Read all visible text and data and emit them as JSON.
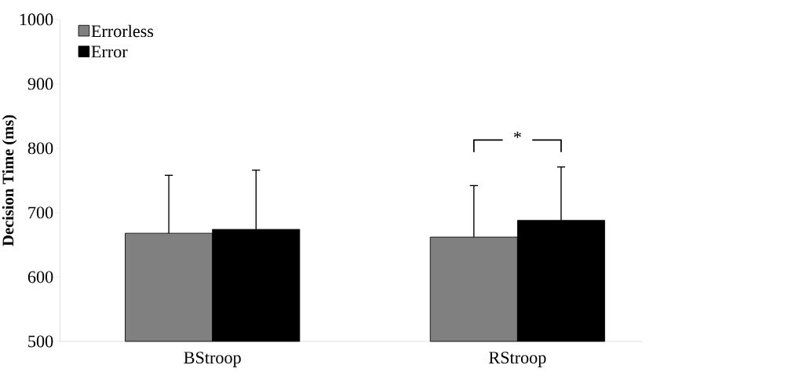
{
  "chart_data": {
    "type": "bar",
    "ylabel": "Decision Time (ms)",
    "categories": [
      "BStroop",
      "RStroop"
    ],
    "series": [
      {
        "name": "Errorless",
        "color": "#808080",
        "values": [
          668,
          662
        ],
        "errors": [
          [
            668,
            758
          ],
          [
            662,
            742
          ]
        ]
      },
      {
        "name": "Error",
        "color": "#000000",
        "values": [
          674,
          688
        ],
        "errors": [
          [
            674,
            766
          ],
          [
            688,
            771
          ]
        ]
      }
    ],
    "ylim": [
      500,
      1000
    ],
    "yticks": [
      500,
      600,
      700,
      800,
      900,
      1000
    ],
    "legend": "top left",
    "annotations": [
      "*"
    ]
  }
}
